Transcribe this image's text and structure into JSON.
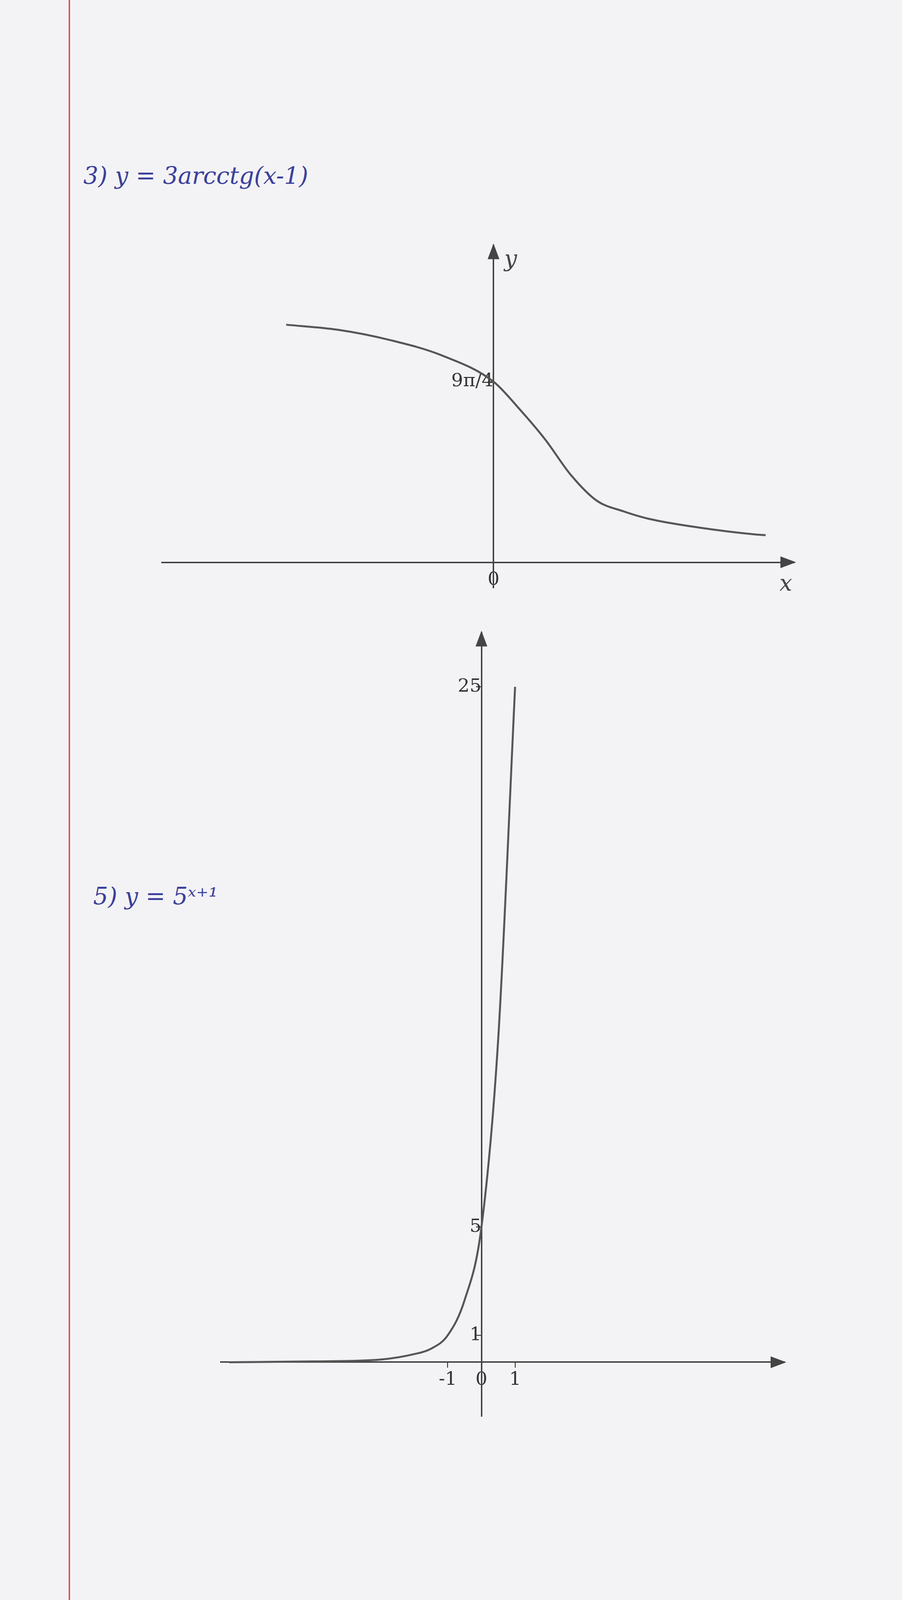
{
  "chart_data": [
    {
      "type": "line",
      "title": "3) y = 3arcctg(x-1)",
      "x_label": "x",
      "y_label": "y",
      "x": [
        -8,
        -6,
        -4,
        -2,
        0,
        1,
        2,
        3,
        4,
        5,
        6,
        8,
        10,
        10.5
      ],
      "values": [
        9.3,
        9.1,
        8.7,
        8.1,
        7.07,
        6.0,
        4.8,
        3.4,
        2.4,
        2.0,
        1.7,
        1.35,
        1.1,
        1.06
      ],
      "xlim": [
        -12.8,
        11.6
      ],
      "ylim": [
        -1,
        12.4
      ],
      "xticks": [
        0
      ],
      "yticks": [
        {
          "value": 7.07,
          "label": "9π/4"
        }
      ],
      "grid": false,
      "color": "#555555",
      "marker": "none",
      "line_style": "solid"
    },
    {
      "type": "line",
      "title": "5) y = 5ˣ⁺¹",
      "x": [
        -7.5,
        -5,
        -3,
        -2,
        -1.5,
        -1,
        -0.5,
        0,
        0.5,
        1
      ],
      "values": [
        0,
        0.03,
        0.1,
        0.3,
        0.5,
        1,
        2.3,
        5,
        12,
        25
      ],
      "xlim": [
        -7.75,
        9
      ],
      "ylim": [
        -2,
        27
      ],
      "xticks": [
        -1,
        0,
        1
      ],
      "yticks": [
        1,
        5,
        25
      ],
      "grid": false,
      "color": "#555555",
      "marker": "none",
      "line_style": "solid"
    }
  ]
}
